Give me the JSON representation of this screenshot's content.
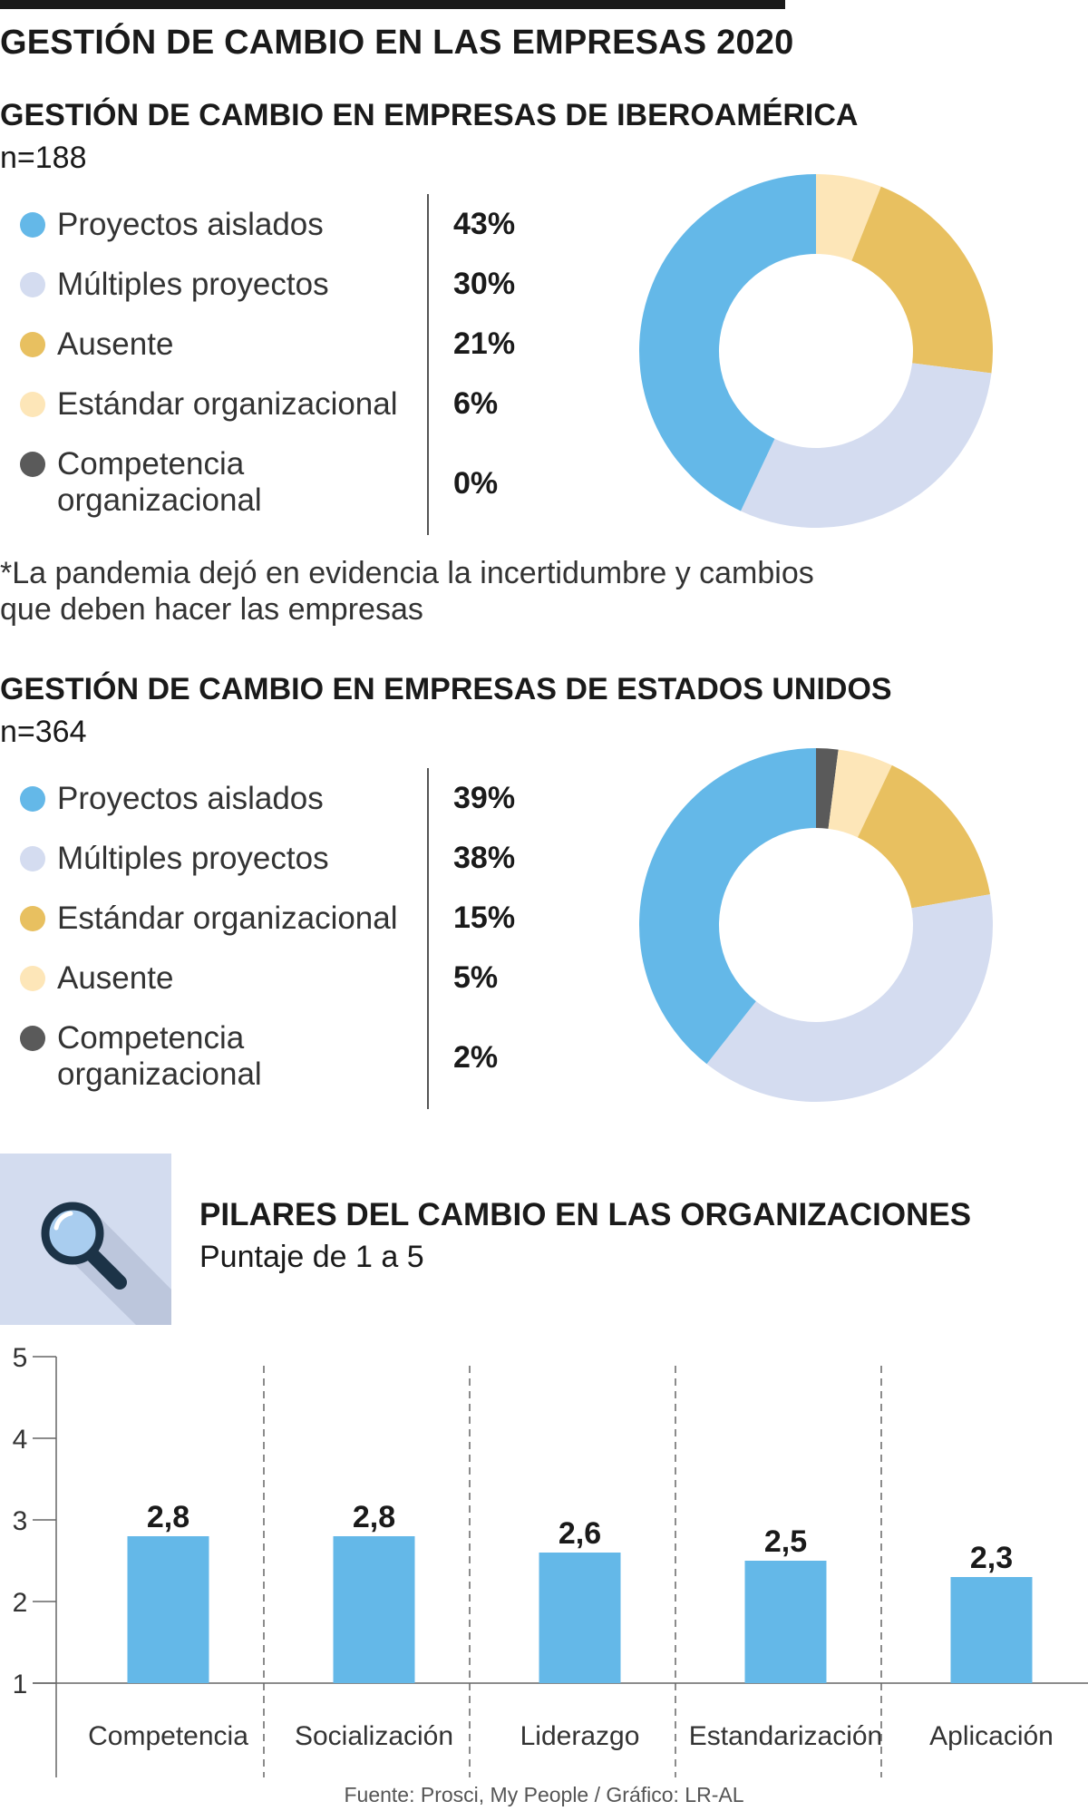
{
  "title": "GESTIÓN DE CAMBIO EN LAS EMPRESAS 2020",
  "colors": {
    "proyectos_aislados": "#64b8e8",
    "multiples_proyectos": "#d4dcf0",
    "ausente_ibero": "#e8c060",
    "estandar_ibero": "#fde6b8",
    "competencia": "#5a5a5a",
    "estandar_us": "#e8c060",
    "ausente_us": "#fde6b8",
    "bar": "#64b8e8"
  },
  "iberoamerica": {
    "title": "GESTIÓN DE CAMBIO EN EMPRESAS DE IBEROAMÉRICA",
    "n": "n=188",
    "items": [
      {
        "label": "Proyectos aislados",
        "pct": "43%",
        "value": 43,
        "color": "#64b8e8"
      },
      {
        "label": "Múltiples proyectos",
        "pct": "30%",
        "value": 30,
        "color": "#d4dcf0"
      },
      {
        "label": "Ausente",
        "pct": "21%",
        "value": 21,
        "color": "#e8c060"
      },
      {
        "label": "Estándar organizacional",
        "pct": "6%",
        "value": 6,
        "color": "#fde6b8"
      },
      {
        "label_line1": "Competencia",
        "label_line2": "organizacional",
        "pct": "0%",
        "value": 0,
        "color": "#5a5a5a"
      }
    ],
    "note_line1": "*La pandemia dejó en evidencia la incertidumbre y cambios",
    "note_line2": "que deben hacer las empresas"
  },
  "estados_unidos": {
    "title": "GESTIÓN DE CAMBIO EN EMPRESAS DE ESTADOS UNIDOS",
    "n": "n=364",
    "items": [
      {
        "label": "Proyectos aislados",
        "pct": "39%",
        "value": 39,
        "color": "#64b8e8"
      },
      {
        "label": "Múltiples proyectos",
        "pct": "38%",
        "value": 38,
        "color": "#d4dcf0"
      },
      {
        "label": "Estándar organizacional",
        "pct": "15%",
        "value": 15,
        "color": "#e8c060"
      },
      {
        "label": "Ausente",
        "pct": "5%",
        "value": 5,
        "color": "#fde6b8"
      },
      {
        "label_line1": "Competencia",
        "label_line2": "organizacional",
        "pct": "2%",
        "value": 2,
        "color": "#5a5a5a"
      }
    ]
  },
  "pilares": {
    "title": "PILARES DEL CAMBIO EN LAS ORGANIZACIONES",
    "subtitle": "Puntaje de 1 a 5"
  },
  "source": "Fuente: Prosci, My People / Gráfico: LR-AL",
  "chart_data": [
    {
      "type": "pie",
      "title": "GESTIÓN DE CAMBIO EN EMPRESAS DE IBEROAMÉRICA",
      "categories": [
        "Proyectos aislados",
        "Múltiples proyectos",
        "Ausente",
        "Estándar organizacional",
        "Competencia organizacional"
      ],
      "values": [
        43,
        30,
        21,
        6,
        0
      ]
    },
    {
      "type": "pie",
      "title": "GESTIÓN DE CAMBIO EN EMPRESAS DE ESTADOS UNIDOS",
      "categories": [
        "Proyectos aislados",
        "Múltiples proyectos",
        "Estándar organizacional",
        "Ausente",
        "Competencia organizacional"
      ],
      "values": [
        39,
        38,
        15,
        5,
        2
      ]
    },
    {
      "type": "bar",
      "title": "PILARES DEL CAMBIO EN LAS ORGANIZACIONES",
      "subtitle": "Puntaje de 1 a 5",
      "categories": [
        "Competencia",
        "Socialización",
        "Liderazgo",
        "Estandarización",
        "Aplicación"
      ],
      "values": [
        2.8,
        2.8,
        2.6,
        2.5,
        2.3
      ],
      "value_labels": [
        "2,8",
        "2,8",
        "2,6",
        "2,5",
        "2,3"
      ],
      "ylim": [
        1,
        5
      ],
      "yticks": [
        "1",
        "2",
        "3",
        "4",
        "5"
      ]
    }
  ]
}
